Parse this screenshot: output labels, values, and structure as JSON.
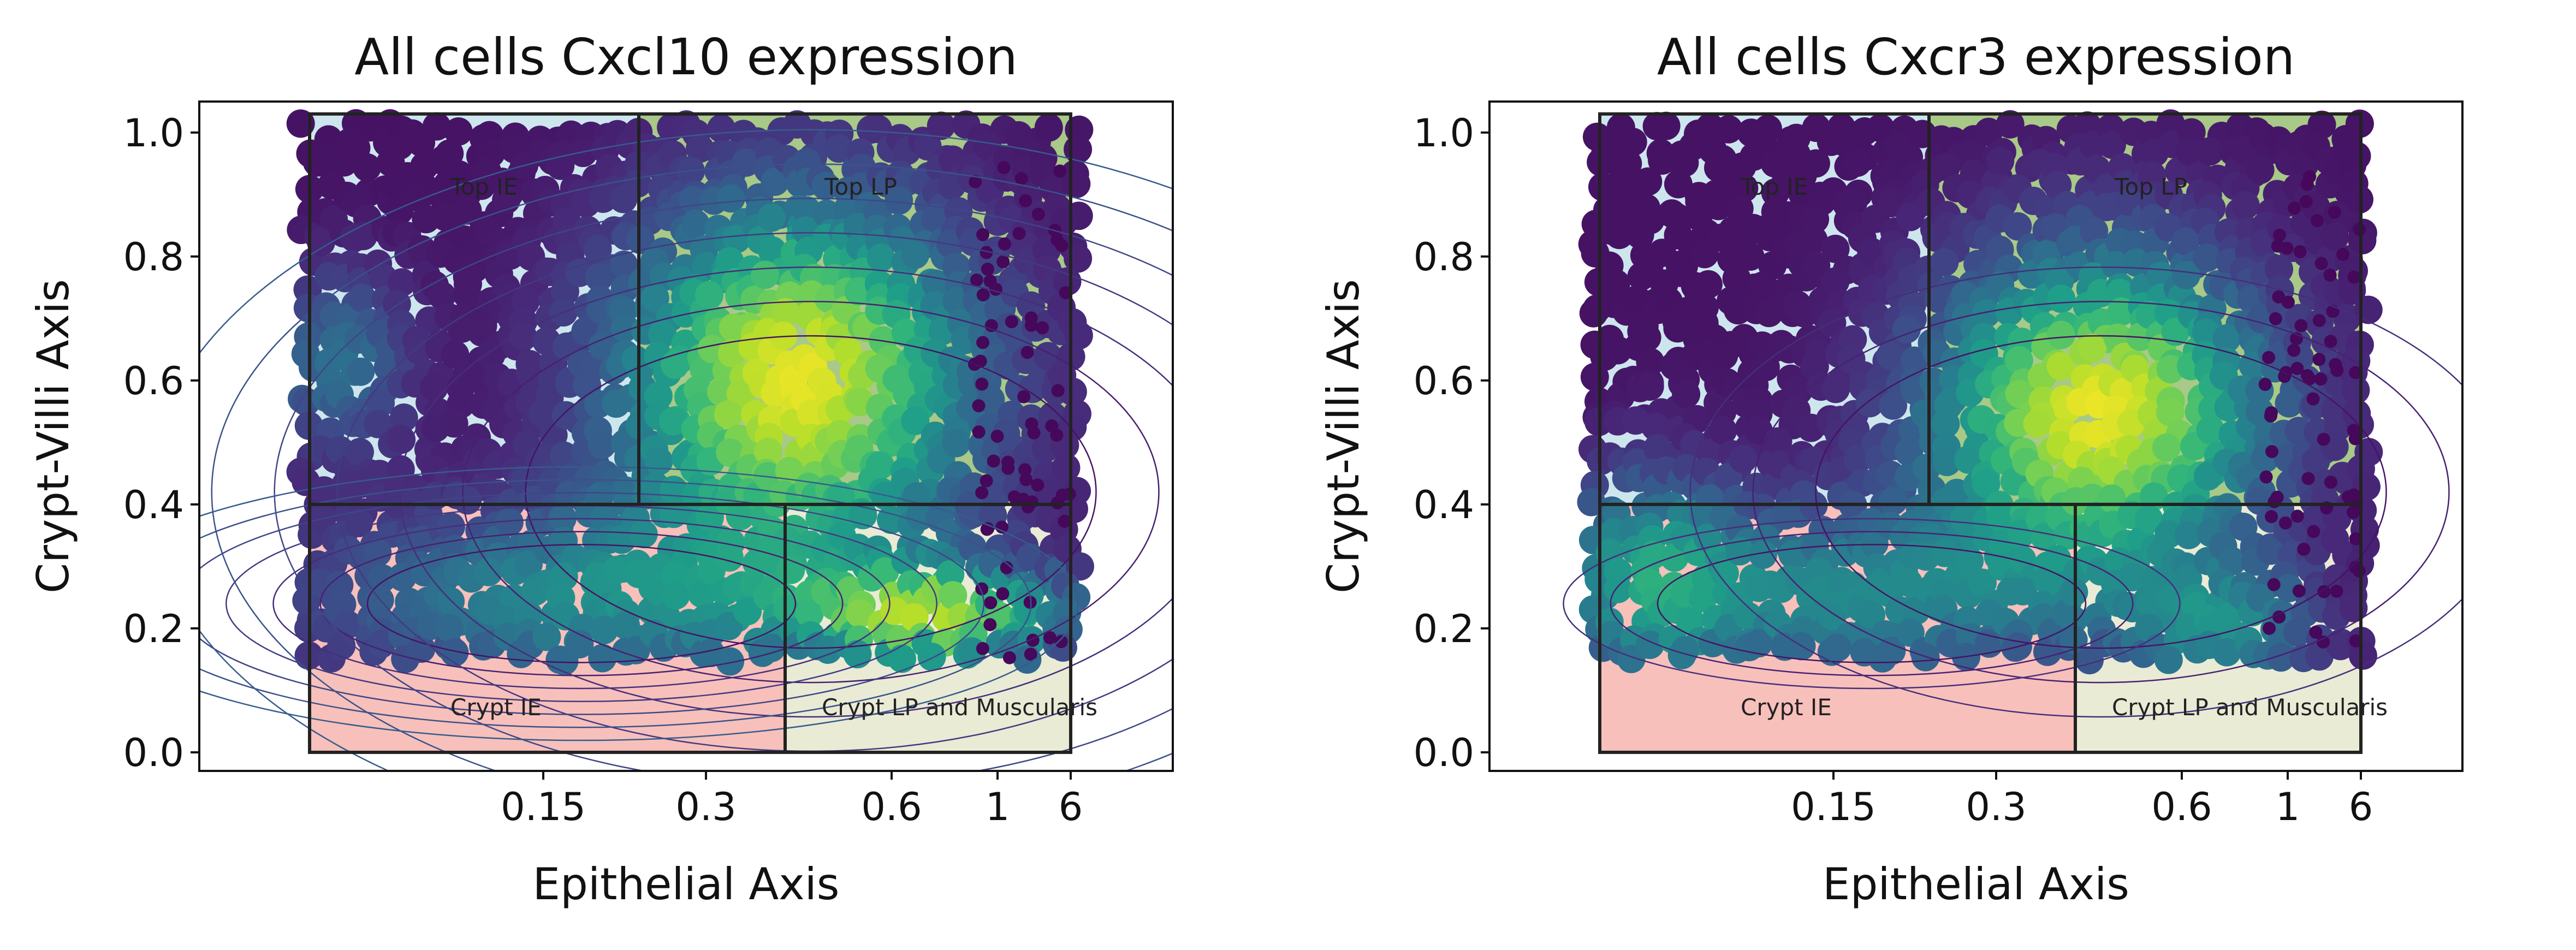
{
  "chart_data": [
    {
      "type": "scatter",
      "title": "All cells Cxcl10 expression",
      "xlabel": "Epithelial Axis",
      "ylabel": "Crypt-Villi Axis",
      "ylim": [
        -0.03,
        1.05
      ],
      "xticks": [
        "0.15",
        "0.3",
        "0.6",
        "1",
        "6"
      ],
      "yticks": [
        "0.0",
        "0.2",
        "0.4",
        "0.6",
        "0.8",
        "1.0"
      ],
      "grid": false,
      "colormap": "viridis",
      "regions": [
        {
          "label": "Top IE",
          "color": "#cde6ee",
          "y": [
            0.4,
            1.03
          ]
        },
        {
          "label": "Top LP",
          "color": "#a8c987",
          "y": [
            0.4,
            1.03
          ]
        },
        {
          "label": "Crypt IE",
          "color": "#f7c0bb",
          "y": [
            0.0,
            0.4
          ]
        },
        {
          "label": "Crypt LP and Muscularis",
          "color": "#e9ebd5",
          "y": [
            0.0,
            0.4
          ]
        }
      ],
      "density_peaks": [
        {
          "y": 0.6,
          "intensity": 1.0
        },
        {
          "y": 0.22,
          "intensity": 0.75
        },
        {
          "y": 0.63,
          "intensity": 0.35
        },
        {
          "y": 0.25,
          "intensity": 0.45
        }
      ],
      "contour_levels": 7
    },
    {
      "type": "scatter",
      "title": "All cells Cxcr3 expression",
      "xlabel": "Epithelial Axis",
      "ylabel": "Crypt-Villi Axis",
      "ylim": [
        -0.03,
        1.05
      ],
      "xticks": [
        "0.15",
        "0.3",
        "0.6",
        "1",
        "6"
      ],
      "yticks": [
        "0.0",
        "0.2",
        "0.4",
        "0.6",
        "0.8",
        "1.0"
      ],
      "grid": false,
      "colormap": "viridis",
      "regions": [
        {
          "label": "Top IE",
          "color": "#cde6ee",
          "y": [
            0.4,
            1.03
          ]
        },
        {
          "label": "Top LP",
          "color": "#a8c987",
          "y": [
            0.4,
            1.03
          ]
        },
        {
          "label": "Crypt IE",
          "color": "#f7c0bb",
          "y": [
            0.0,
            0.4
          ]
        },
        {
          "label": "Crypt LP and Muscularis",
          "color": "#e9ebd5",
          "y": [
            0.0,
            0.4
          ]
        }
      ],
      "density_peaks": [
        {
          "y": 0.55,
          "intensity": 1.0
        },
        {
          "y": 0.25,
          "intensity": 0.45
        },
        {
          "y": 0.3,
          "intensity": 0.35
        },
        {
          "y": 0.2,
          "intensity": 0.4
        }
      ],
      "contour_levels": 3
    }
  ]
}
